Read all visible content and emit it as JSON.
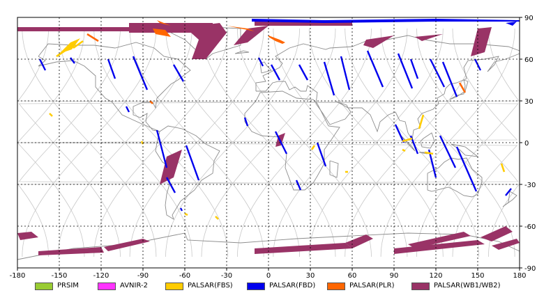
{
  "colors": {
    "background": "#ffffff",
    "frame": "#000000",
    "grid": "#000000",
    "coast": "#8c8c8c",
    "orbit": "#c8c8c8"
  },
  "axis": {
    "x_ticks": [
      "-180",
      "-150",
      "-120",
      "-90",
      "-60",
      "-30",
      "0",
      "30",
      "60",
      "90",
      "120",
      "150",
      "180"
    ],
    "y_ticks": [
      "90",
      "60",
      "30",
      "0",
      "-30",
      "-60",
      "-90"
    ],
    "x_range": [
      -180,
      180
    ],
    "y_range": [
      -90,
      90
    ]
  },
  "legend": {
    "items": [
      {
        "label": "PRSIM",
        "color": "#99cc33"
      },
      {
        "label": "AVNIR-2",
        "color": "#ff33ff"
      },
      {
        "label": "PALSAR(FBS)",
        "color": "#ffcc00"
      },
      {
        "label": "PALSAR(FBD)",
        "color": "#0000ee"
      },
      {
        "label": "PALSAR(PLR)",
        "color": "#ff6600"
      },
      {
        "label": "PALSAR(WB1/WB2)",
        "color": "#993366"
      }
    ]
  },
  "map": {
    "polar_bands": [
      {
        "mode": "WB",
        "points": [
          [
            -180,
            83
          ],
          [
            -60,
            83
          ],
          [
            -60,
            80
          ],
          [
            -180,
            80
          ]
        ]
      },
      {
        "mode": "WB",
        "points": [
          [
            -100,
            86
          ],
          [
            -40,
            86
          ],
          [
            -40,
            79
          ],
          [
            -100,
            79
          ]
        ]
      },
      {
        "mode": "WB",
        "points": [
          [
            -10,
            87
          ],
          [
            60,
            87
          ],
          [
            60,
            84
          ],
          [
            -10,
            84
          ]
        ]
      },
      {
        "mode": "WB",
        "points": [
          [
            -60,
            83
          ],
          [
            -35,
            86
          ],
          [
            -30,
            79
          ],
          [
            -45,
            60
          ],
          [
            -55,
            60
          ],
          [
            -50,
            74
          ]
        ]
      },
      {
        "mode": "WB",
        "points": [
          [
            -15,
            82
          ],
          [
            0,
            84
          ],
          [
            -15,
            72
          ],
          [
            -25,
            70
          ]
        ]
      },
      {
        "mode": "WB",
        "points": [
          [
            70,
            74
          ],
          [
            90,
            77
          ],
          [
            75,
            68
          ],
          [
            68,
            70
          ]
        ]
      },
      {
        "mode": "WB",
        "points": [
          [
            105,
            76
          ],
          [
            125,
            78
          ],
          [
            110,
            73
          ]
        ]
      },
      {
        "mode": "WB",
        "points": [
          [
            150,
            82
          ],
          [
            160,
            83
          ],
          [
            155,
            65
          ],
          [
            145,
            62
          ],
          [
            147,
            70
          ]
        ]
      },
      {
        "mode": "WB",
        "points": [
          [
            -180,
            -65
          ],
          [
            -170,
            -64
          ],
          [
            -165,
            -68
          ],
          [
            -178,
            -70
          ]
        ]
      },
      {
        "mode": "WB",
        "points": [
          [
            -165,
            -78
          ],
          [
            -120,
            -75
          ],
          [
            -118,
            -79
          ],
          [
            -165,
            -81
          ]
        ]
      },
      {
        "mode": "WB",
        "points": [
          [
            -118,
            -75
          ],
          [
            -90,
            -69
          ],
          [
            -85,
            -71
          ],
          [
            -115,
            -78
          ]
        ]
      },
      {
        "mode": "WB",
        "points": [
          [
            -10,
            -76
          ],
          [
            55,
            -72
          ],
          [
            60,
            -76
          ],
          [
            -10,
            -80
          ]
        ]
      },
      {
        "mode": "WB",
        "points": [
          [
            55,
            -72
          ],
          [
            70,
            -66
          ],
          [
            75,
            -69
          ],
          [
            60,
            -76
          ]
        ]
      },
      {
        "mode": "WB",
        "points": [
          [
            90,
            -76
          ],
          [
            150,
            -70
          ],
          [
            155,
            -73
          ],
          [
            90,
            -80
          ]
        ]
      },
      {
        "mode": "WB",
        "points": [
          [
            100,
            -73
          ],
          [
            140,
            -64
          ],
          [
            145,
            -67
          ],
          [
            105,
            -76
          ]
        ]
      },
      {
        "mode": "WB",
        "points": [
          [
            152,
            -68
          ],
          [
            170,
            -60
          ],
          [
            175,
            -64
          ],
          [
            160,
            -71
          ]
        ]
      },
      {
        "mode": "WB",
        "points": [
          [
            160,
            -74
          ],
          [
            178,
            -69
          ],
          [
            180,
            -72
          ],
          [
            165,
            -77
          ]
        ]
      },
      {
        "mode": "WB",
        "points": [
          [
            -73,
            -10
          ],
          [
            -62,
            -5
          ],
          [
            -68,
            -25
          ],
          [
            -78,
            -30
          ]
        ]
      },
      {
        "mode": "WB",
        "points": [
          [
            7,
            5
          ],
          [
            12,
            7
          ],
          [
            9,
            -2
          ],
          [
            5,
            -3
          ]
        ]
      },
      {
        "mode": "FBD",
        "points": [
          [
            -12,
            89
          ],
          [
            40,
            88
          ],
          [
            120,
            89
          ],
          [
            180,
            88
          ],
          [
            180,
            87
          ],
          [
            120,
            87
          ],
          [
            40,
            86
          ],
          [
            -12,
            87
          ]
        ]
      },
      {
        "mode": "FBD",
        "points": [
          [
            170,
            86
          ],
          [
            178,
            87
          ],
          [
            175,
            84
          ]
        ]
      },
      {
        "mode": "FBS",
        "points": [
          [
            -142,
            72
          ],
          [
            -135,
            75
          ],
          [
            -141,
            67
          ],
          [
            -150,
            64
          ]
        ]
      },
      {
        "mode": "PLR",
        "points": [
          [
            -83,
            82
          ],
          [
            -74,
            81
          ],
          [
            -70,
            76
          ],
          [
            -81,
            78
          ]
        ]
      },
      {
        "mode": "PLR",
        "points": [
          [
            -80,
            88
          ],
          [
            -78,
            86
          ],
          [
            -70,
            84
          ]
        ]
      },
      {
        "mode": "PLR",
        "points": [
          [
            -30,
            84
          ],
          [
            -15,
            82
          ],
          [
            -10,
            80
          ]
        ]
      },
      {
        "mode": "PLR",
        "points": [
          [
            0,
            77
          ],
          [
            8,
            74
          ],
          [
            12,
            72
          ],
          [
            10,
            71
          ],
          [
            5,
            73
          ],
          [
            0,
            76
          ]
        ]
      }
    ],
    "strips": [
      {
        "mode": "FBD",
        "lon1": -164,
        "lat1": 60,
        "lon2": -160,
        "lat2": 52
      },
      {
        "mode": "FBD",
        "lon1": -142,
        "lat1": 61,
        "lon2": -139,
        "lat2": 57
      },
      {
        "mode": "FBD",
        "lon1": -115,
        "lat1": 60,
        "lon2": -110,
        "lat2": 46
      },
      {
        "mode": "FBD",
        "lon1": -97,
        "lat1": 62,
        "lon2": -87,
        "lat2": 38
      },
      {
        "mode": "FBD",
        "lon1": -68,
        "lat1": 56,
        "lon2": -61,
        "lat2": 44
      },
      {
        "mode": "FBD",
        "lon1": -102,
        "lat1": 26,
        "lon2": -100,
        "lat2": 22
      },
      {
        "mode": "FBD",
        "lon1": -80,
        "lat1": 9,
        "lon2": -73,
        "lat2": -18
      },
      {
        "mode": "FBD",
        "lon1": -59,
        "lat1": -2,
        "lon2": -50,
        "lat2": -27
      },
      {
        "mode": "FBD",
        "lon1": -73,
        "lat1": -25,
        "lon2": -67,
        "lat2": -36
      },
      {
        "mode": "FBD",
        "lon1": -63,
        "lat1": -47,
        "lon2": -62,
        "lat2": -49
      },
      {
        "mode": "FBD",
        "lon1": -7,
        "lat1": 61,
        "lon2": -4,
        "lat2": 55
      },
      {
        "mode": "FBD",
        "lon1": 2,
        "lat1": 56,
        "lon2": 8,
        "lat2": 45
      },
      {
        "mode": "FBD",
        "lon1": 22,
        "lat1": 56,
        "lon2": 28,
        "lat2": 45
      },
      {
        "mode": "FBD",
        "lon1": 40,
        "lat1": 58,
        "lon2": 47,
        "lat2": 34
      },
      {
        "mode": "FBD",
        "lon1": 52,
        "lat1": 62,
        "lon2": 58,
        "lat2": 38
      },
      {
        "mode": "FBD",
        "lon1": 71,
        "lat1": 66,
        "lon2": 82,
        "lat2": 40
      },
      {
        "mode": "FBD",
        "lon1": 93,
        "lat1": 64,
        "lon2": 103,
        "lat2": 39
      },
      {
        "mode": "FBD",
        "lon1": 102,
        "lat1": 60,
        "lon2": 107,
        "lat2": 46
      },
      {
        "mode": "FBD",
        "lon1": 116,
        "lat1": 60,
        "lon2": 126,
        "lat2": 40
      },
      {
        "mode": "FBD",
        "lon1": 125,
        "lat1": 58,
        "lon2": 135,
        "lat2": 33
      },
      {
        "mode": "FBD",
        "lon1": 148,
        "lat1": 60,
        "lon2": 152,
        "lat2": 52
      },
      {
        "mode": "FBD",
        "lon1": -17,
        "lat1": 18,
        "lon2": -15,
        "lat2": 12
      },
      {
        "mode": "FBD",
        "lon1": 5,
        "lat1": 8,
        "lon2": 13,
        "lat2": -8
      },
      {
        "mode": "FBD",
        "lon1": 35,
        "lat1": 0,
        "lon2": 41,
        "lat2": -17
      },
      {
        "mode": "FBD",
        "lon1": 20,
        "lat1": -27,
        "lon2": 23,
        "lat2": -34
      },
      {
        "mode": "FBD",
        "lon1": 91,
        "lat1": 13,
        "lon2": 97,
        "lat2": 0
      },
      {
        "mode": "FBD",
        "lon1": 102,
        "lat1": 5,
        "lon2": 107,
        "lat2": -8
      },
      {
        "mode": "FBD",
        "lon1": 115,
        "lat1": -5,
        "lon2": 120,
        "lat2": -25
      },
      {
        "mode": "FBD",
        "lon1": 123,
        "lat1": 5,
        "lon2": 134,
        "lat2": -18
      },
      {
        "mode": "FBD",
        "lon1": 135,
        "lat1": -3,
        "lon2": 149,
        "lat2": -35
      },
      {
        "mode": "FBD",
        "lon1": 174,
        "lat1": -33,
        "lon2": 170,
        "lat2": -38
      },
      {
        "mode": "FBS",
        "lon1": -140,
        "lat1": 68,
        "lon2": -133,
        "lat2": 73
      },
      {
        "mode": "FBS",
        "lon1": -152,
        "lat1": 62,
        "lon2": -146,
        "lat2": 66
      },
      {
        "mode": "FBS",
        "lon1": -157,
        "lat1": 21,
        "lon2": -155,
        "lat2": 19
      },
      {
        "mode": "FBS",
        "lon1": -91,
        "lat1": 1,
        "lon2": -90,
        "lat2": -1
      },
      {
        "mode": "FBS",
        "lon1": -60,
        "lat1": -51,
        "lon2": -58,
        "lat2": -52
      },
      {
        "mode": "FBS",
        "lon1": -38,
        "lat1": -53,
        "lon2": -36,
        "lat2": -55
      },
      {
        "mode": "FBS",
        "lon1": 111,
        "lat1": 20,
        "lon2": 108,
        "lat2": 10
      },
      {
        "mode": "FBS",
        "lon1": 96,
        "lat1": 1,
        "lon2": 103,
        "lat2": 3
      },
      {
        "mode": "FBS",
        "lon1": 112,
        "lat1": -7,
        "lon2": 118,
        "lat2": -8
      },
      {
        "mode": "FBS",
        "lon1": 55,
        "lat1": -21,
        "lon2": 57,
        "lat2": -21
      },
      {
        "mode": "FBS",
        "lon1": 167,
        "lat1": -15,
        "lon2": 169,
        "lat2": -21
      },
      {
        "mode": "FBS",
        "lon1": 96,
        "lat1": -5,
        "lon2": 98,
        "lat2": -6
      },
      {
        "mode": "FBS",
        "lon1": 33,
        "lat1": -2,
        "lon2": 31,
        "lat2": -5
      },
      {
        "mode": "PLR",
        "lon1": 137,
        "lat1": 43,
        "lon2": 141,
        "lat2": 36
      },
      {
        "mode": "PLR",
        "lon1": -130,
        "lat1": 78,
        "lon2": -122,
        "lat2": 73
      },
      {
        "mode": "PLR",
        "lon1": -85,
        "lat1": 30,
        "lon2": -83,
        "lat2": 28
      }
    ]
  }
}
